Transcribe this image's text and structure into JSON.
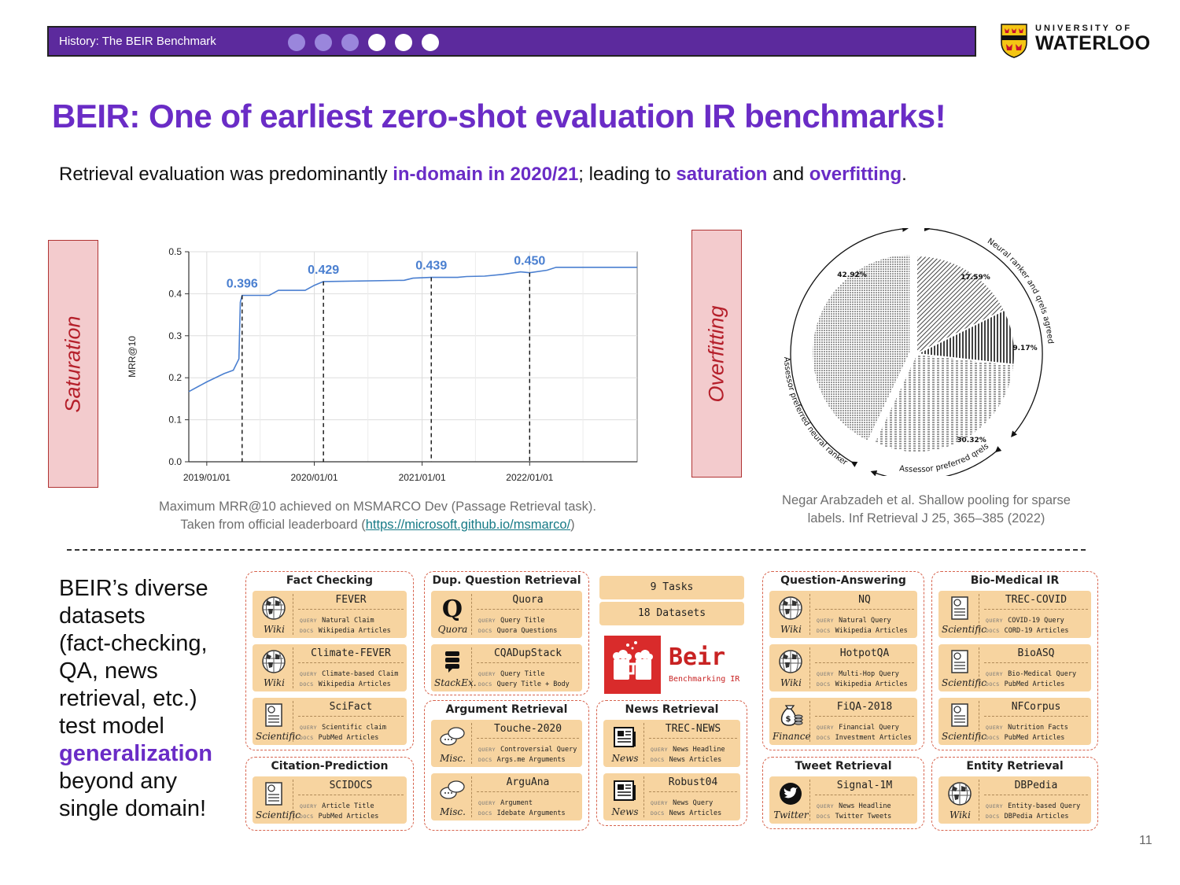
{
  "header": {
    "section_title": "History: The BEIR Benchmark",
    "progress_dots": [
      false,
      false,
      false,
      true,
      true,
      true
    ],
    "logo_small": "UNIVERSITY OF",
    "logo_big": "WATERLOO"
  },
  "slide": {
    "title": "BEIR: One of earliest zero-shot evaluation IR benchmarks!",
    "subtitle": {
      "p1": "Retrieval evaluation was predominantly ",
      "h1": "in-domain in 2020/21",
      "p2": "; leading to ",
      "h2": "saturation",
      "p3": " and ",
      "h3": "overfitting",
      "p4": "."
    },
    "saturation_label": "Saturation",
    "overfitting_label": "Overfitting",
    "chart_caption_line1": "Maximum MRR@10 achieved on MSMARCO Dev (Passage Retrieval task).",
    "chart_caption_line2_prefix": "Taken from official leaderboard (",
    "chart_caption_link": "https://microsoft.github.io/msmarco/",
    "chart_caption_line2_suffix": ")",
    "pie_caption_line1": "Negar Arabzadeh et al. Shallow pooling for sparse",
    "pie_caption_line2": "labels. Inf Retrieval J 25, 365–385 (2022)",
    "beir_text": {
      "l1": "BEIR’s diverse",
      "l2": "datasets",
      "l3": "(fact-checking,",
      "l4": "QA, news",
      "l5": "retrieval, etc.)",
      "l6": "test model",
      "l7": "generalization",
      "l8": "beyond any",
      "l9": "single domain!"
    },
    "page_number": "11"
  },
  "chart_data": [
    {
      "type": "line",
      "title": "",
      "xlabel": "",
      "ylabel": "MRR@10",
      "ylim": [
        0.0,
        0.5
      ],
      "yticks": [
        "0.0",
        "0.1",
        "0.2",
        "0.3",
        "0.4",
        "0.5"
      ],
      "xticks": [
        "2019/01/01",
        "2020/01/01",
        "2021/01/01",
        "2022/01/01"
      ],
      "grid": true,
      "series": [
        {
          "values_by_date": [
            [
              "2018-11-01",
              0.167
            ],
            [
              "2019-01-01",
              0.19
            ],
            [
              "2019-03-01",
              0.21
            ],
            [
              "2019-04-01",
              0.218
            ],
            [
              "2019-04-20",
              0.245
            ],
            [
              "2019-04-25",
              0.38
            ],
            [
              "2019-05-01",
              0.396
            ],
            [
              "2019-08-01",
              0.396
            ],
            [
              "2019-09-01",
              0.408
            ],
            [
              "2019-12-01",
              0.408
            ],
            [
              "2020-01-01",
              0.42
            ],
            [
              "2020-02-01",
              0.429
            ],
            [
              "2020-11-01",
              0.432
            ],
            [
              "2020-12-01",
              0.437
            ],
            [
              "2021-02-01",
              0.439
            ],
            [
              "2021-05-01",
              0.439
            ],
            [
              "2021-06-01",
              0.441
            ],
            [
              "2021-08-01",
              0.442
            ],
            [
              "2021-10-01",
              0.446
            ],
            [
              "2021-12-01",
              0.452
            ],
            [
              "2022-01-01",
              0.45
            ],
            [
              "2022-03-01",
              0.456
            ],
            [
              "2022-04-01",
              0.463
            ],
            [
              "2023-01-01",
              0.463
            ]
          ]
        }
      ],
      "annotations": [
        {
          "label": "0.396",
          "date": "2019-05-01",
          "value": 0.396
        },
        {
          "label": "0.429",
          "date": "2020-02-01",
          "value": 0.429
        },
        {
          "label": "0.439",
          "date": "2021-02-01",
          "value": 0.439
        },
        {
          "label": "0.450",
          "date": "2022-01-01",
          "value": 0.45
        }
      ]
    },
    {
      "type": "pie",
      "title": "",
      "slices": [
        {
          "label": "17.59%",
          "value": 17.59
        },
        {
          "label": "9.17%",
          "value": 9.17
        },
        {
          "label": "30.32%",
          "value": 30.32
        },
        {
          "label": "42.92%",
          "value": 42.92
        }
      ],
      "arc_labels": [
        "Neural ranker and qrels agreed",
        "Assessor preferred qrels",
        "Assessor preferred neural ranker"
      ]
    }
  ],
  "datasets": {
    "groups": [
      {
        "title": "Fact Checking",
        "cards": [
          {
            "name": "FEVER",
            "query": "Natural Claim",
            "docs": "Wikipedia Articles",
            "source": "Wiki",
            "icon": "wiki-globe-icon"
          },
          {
            "name": "Climate-FEVER",
            "query": "Climate-based Claim",
            "docs": "Wikipedia Articles",
            "source": "Wiki",
            "icon": "wiki-globe-icon"
          },
          {
            "name": "SciFact",
            "query": "Scientific claim",
            "docs": "PubMed Articles",
            "source": "Scientific",
            "icon": "document-icon"
          }
        ]
      },
      {
        "title": "Citation-Prediction",
        "cards": [
          {
            "name": "SCIDOCS",
            "query": "Article Title",
            "docs": "PubMed Articles",
            "source": "Scientific",
            "icon": "document-icon"
          }
        ]
      },
      {
        "title": "Dup. Question Retrieval",
        "cards": [
          {
            "name": "Quora",
            "query": "Query Title",
            "docs": "Quora Questions",
            "source": "Quora",
            "icon": "quora-icon"
          },
          {
            "name": "CQADupStack",
            "query": "Query Title",
            "docs": "Query Title + Body",
            "source": "StackEx.",
            "icon": "stack-icon"
          }
        ]
      },
      {
        "title": "Argument Retrieval",
        "cards": [
          {
            "name": "Touche-2020",
            "query": "Controversial Query",
            "docs": "Args.me Arguments",
            "source": "Misc.",
            "icon": "chat-bubble-icon"
          },
          {
            "name": "ArguAna",
            "query": "Argument",
            "docs": "Idebate Arguments",
            "source": "Misc.",
            "icon": "chat-bubble-icon"
          }
        ]
      },
      {
        "title": "News Retrieval",
        "cards": [
          {
            "name": "TREC-NEWS",
            "query": "News Headline",
            "docs": "News Articles",
            "source": "News",
            "icon": "newspaper-icon"
          },
          {
            "name": "Robust04",
            "query": "News Query",
            "docs": "News Articles",
            "source": "News",
            "icon": "newspaper-icon"
          }
        ]
      },
      {
        "title": "Question-Answering",
        "cards": [
          {
            "name": "NQ",
            "query": "Natural Query",
            "docs": "Wikipedia Articles",
            "source": "Wiki",
            "icon": "wiki-globe-icon"
          },
          {
            "name": "HotpotQA",
            "query": "Multi-Hop Query",
            "docs": "Wikipedia Articles",
            "source": "Wiki",
            "icon": "wiki-globe-icon"
          },
          {
            "name": "FiQA-2018",
            "query": "Financial Query",
            "docs": "Investment Articles",
            "source": "Finance",
            "icon": "money-bag-icon"
          }
        ]
      },
      {
        "title": "Tweet Retrieval",
        "cards": [
          {
            "name": "Signal-1M",
            "query": "News Headline",
            "docs": "Twitter Tweets",
            "source": "Twitter",
            "icon": "twitter-bird-icon"
          }
        ]
      },
      {
        "title": "Bio-Medical IR",
        "cards": [
          {
            "name": "TREC-COVID",
            "query": "COVID-19 Query",
            "docs": "CORD-19 Articles",
            "source": "Scientific",
            "icon": "document-icon"
          },
          {
            "name": "BioASQ",
            "query": "Bio-Medical Query",
            "docs": "PubMed Articles",
            "source": "Scientific",
            "icon": "document-icon"
          },
          {
            "name": "NFCorpus",
            "query": "Nutrition Facts",
            "docs": "PubMed Articles",
            "source": "Scientific",
            "icon": "document-icon"
          }
        ]
      },
      {
        "title": "Entity Retrieval",
        "cards": [
          {
            "name": "DBPedia",
            "query": "Entity-based Query",
            "docs": "DBPedia Articles",
            "source": "Wiki",
            "icon": "wiki-globe-icon"
          }
        ]
      }
    ],
    "pill_tasks": "9 Tasks",
    "pill_datasets": "18 Datasets",
    "beir_logo_word": "Beir",
    "beir_logo_sub": "Benchmarking IR",
    "tag_query": "QUERY",
    "tag_docs": "DOCS",
    "colors": {
      "card": "#f7d4a0",
      "group_border": "#d7644e",
      "beir_red": "#d92b2b"
    }
  }
}
